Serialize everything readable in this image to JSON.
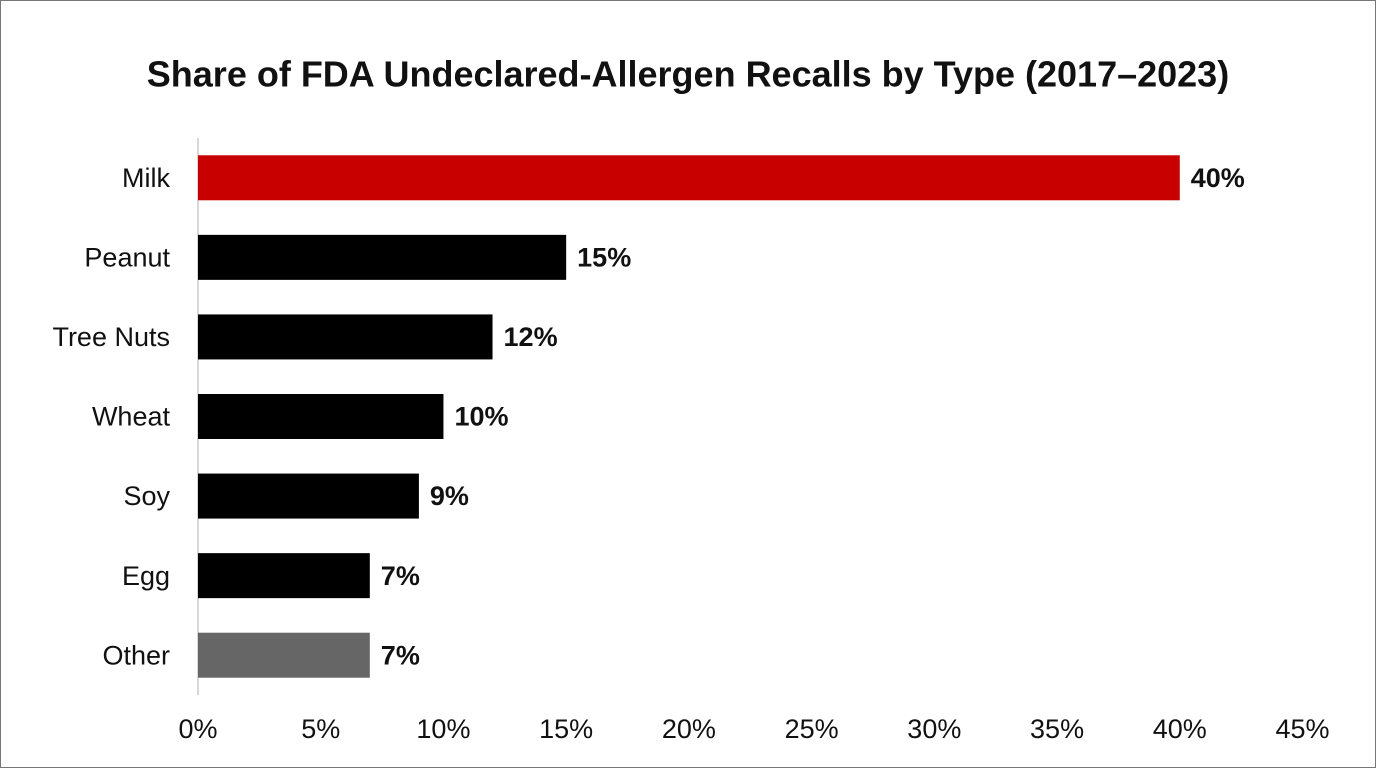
{
  "chart_data": {
    "type": "hbar",
    "title": "Share of FDA Undeclared-Allergen Recalls by Type (2017–2023)",
    "categories": [
      "Milk",
      "Peanut",
      "Tree Nuts",
      "Wheat",
      "Soy",
      "Egg",
      "Other"
    ],
    "values": [
      40,
      15,
      12,
      10,
      9,
      7,
      7
    ],
    "value_labels": [
      "40%",
      "15%",
      "12%",
      "10%",
      "9%",
      "7%",
      "7%"
    ],
    "colors": [
      "#c80000",
      "#000000",
      "#000000",
      "#000000",
      "#000000",
      "#000000",
      "#666666"
    ],
    "xlim": [
      0,
      45
    ],
    "xticks": [
      {
        "value": 0,
        "label": "0%"
      },
      {
        "value": 5,
        "label": "5%"
      },
      {
        "value": 10,
        "label": "10%"
      },
      {
        "value": 15,
        "label": "15%"
      },
      {
        "value": 20,
        "label": "20%"
      },
      {
        "value": 25,
        "label": "25%"
      },
      {
        "value": 30,
        "label": "30%"
      },
      {
        "value": 35,
        "label": "35%"
      },
      {
        "value": 40,
        "label": "40%"
      },
      {
        "value": 45,
        "label": "45%"
      }
    ],
    "grid": false
  }
}
